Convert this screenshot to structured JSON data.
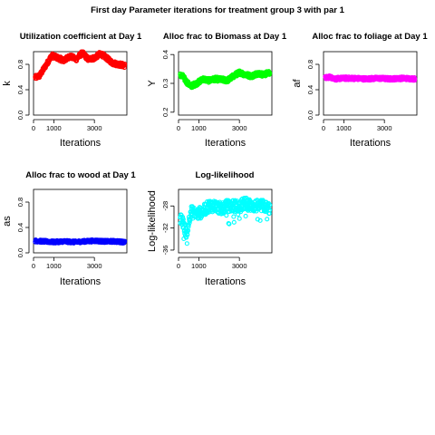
{
  "figure": {
    "title": "First day Parameter iterations for treatment group 3 with par 1"
  },
  "chart_data": [
    {
      "type": "scatter",
      "title": "Utilization coefficient at Day 1",
      "xlabel": "Iterations",
      "ylabel": "k",
      "color": "#ff0000",
      "xlim": [
        0,
        4600
      ],
      "ylim": [
        0,
        1.0
      ],
      "xticks": [
        0,
        1000,
        3000
      ],
      "yticks": [
        0.0,
        0.4,
        0.8
      ],
      "band": 0.07,
      "trace": [
        [
          0,
          0.58
        ],
        [
          300,
          0.62
        ],
        [
          600,
          0.78
        ],
        [
          900,
          0.94
        ],
        [
          1200,
          0.9
        ],
        [
          1500,
          0.86
        ],
        [
          1800,
          0.93
        ],
        [
          2100,
          0.88
        ],
        [
          2400,
          0.98
        ],
        [
          2700,
          0.88
        ],
        [
          3000,
          0.9
        ],
        [
          3300,
          0.97
        ],
        [
          3600,
          0.9
        ],
        [
          3900,
          0.82
        ],
        [
          4200,
          0.8
        ],
        [
          4500,
          0.78
        ]
      ]
    },
    {
      "type": "scatter",
      "title": "Alloc frac to Biomass at Day 1",
      "xlabel": "Iterations",
      "ylabel": "Y",
      "color": "#00ff00",
      "xlim": [
        0,
        4600
      ],
      "ylim": [
        0.19,
        0.41
      ],
      "xticks": [
        0,
        1000,
        3000
      ],
      "yticks": [
        0.2,
        0.3,
        0.4
      ],
      "band": 0.015,
      "trace": [
        [
          0,
          0.33
        ],
        [
          200,
          0.325
        ],
        [
          400,
          0.305
        ],
        [
          600,
          0.29
        ],
        [
          900,
          0.3
        ],
        [
          1200,
          0.315
        ],
        [
          1500,
          0.31
        ],
        [
          1800,
          0.315
        ],
        [
          2100,
          0.313
        ],
        [
          2400,
          0.31
        ],
        [
          2700,
          0.325
        ],
        [
          3000,
          0.338
        ],
        [
          3300,
          0.33
        ],
        [
          3600,
          0.325
        ],
        [
          3900,
          0.335
        ],
        [
          4200,
          0.33
        ],
        [
          4500,
          0.338
        ]
      ]
    },
    {
      "type": "scatter",
      "title": "Alloc frac to foliage at Day 1",
      "xlabel": "Iterations",
      "ylabel": "af",
      "color": "#ff00ff",
      "xlim": [
        0,
        4600
      ],
      "ylim": [
        0,
        1.0
      ],
      "xticks": [
        0,
        1000,
        3000
      ],
      "yticks": [
        0.0,
        0.4,
        0.8
      ],
      "band": 0.05,
      "trace": [
        [
          0,
          0.58
        ],
        [
          300,
          0.6
        ],
        [
          600,
          0.57
        ],
        [
          900,
          0.58
        ],
        [
          1500,
          0.58
        ],
        [
          2100,
          0.57
        ],
        [
          2700,
          0.58
        ],
        [
          3300,
          0.57
        ],
        [
          3900,
          0.58
        ],
        [
          4500,
          0.57
        ]
      ]
    },
    {
      "type": "scatter",
      "title": "Alloc frac to wood at Day 1",
      "xlabel": "Iterations",
      "ylabel": "as",
      "color": "#0000ff",
      "xlim": [
        0,
        4600
      ],
      "ylim": [
        0,
        1.0
      ],
      "xticks": [
        0,
        1000,
        3000
      ],
      "yticks": [
        0.0,
        0.4,
        0.8
      ],
      "band": 0.04,
      "trace": [
        [
          0,
          0.19
        ],
        [
          500,
          0.18
        ],
        [
          1000,
          0.17
        ],
        [
          1500,
          0.18
        ],
        [
          2000,
          0.17
        ],
        [
          2500,
          0.18
        ],
        [
          3000,
          0.19
        ],
        [
          3500,
          0.18
        ],
        [
          4000,
          0.18
        ],
        [
          4500,
          0.17
        ]
      ]
    },
    {
      "type": "scatter",
      "title": "Log-likelihood",
      "xlabel": "Iterations",
      "ylabel": "Log-likelihood",
      "color": "#00ffff",
      "xlim": [
        0,
        4600
      ],
      "ylim": [
        -36.5,
        -25
      ],
      "xticks": [
        0,
        1000,
        3000
      ],
      "yticks": [
        -36,
        -32,
        -28
      ],
      "band": 2.2,
      "trace": [
        [
          0,
          -30
        ],
        [
          200,
          -31
        ],
        [
          400,
          -33
        ],
        [
          600,
          -29
        ],
        [
          900,
          -29.5
        ],
        [
          1200,
          -29
        ],
        [
          1500,
          -28
        ],
        [
          1800,
          -28
        ],
        [
          2100,
          -28.5
        ],
        [
          2400,
          -28
        ],
        [
          2700,
          -28
        ],
        [
          3000,
          -28
        ],
        [
          3300,
          -27.5
        ],
        [
          3600,
          -28
        ],
        [
          3900,
          -28
        ],
        [
          4200,
          -28
        ],
        [
          4500,
          -28.5
        ]
      ]
    }
  ]
}
